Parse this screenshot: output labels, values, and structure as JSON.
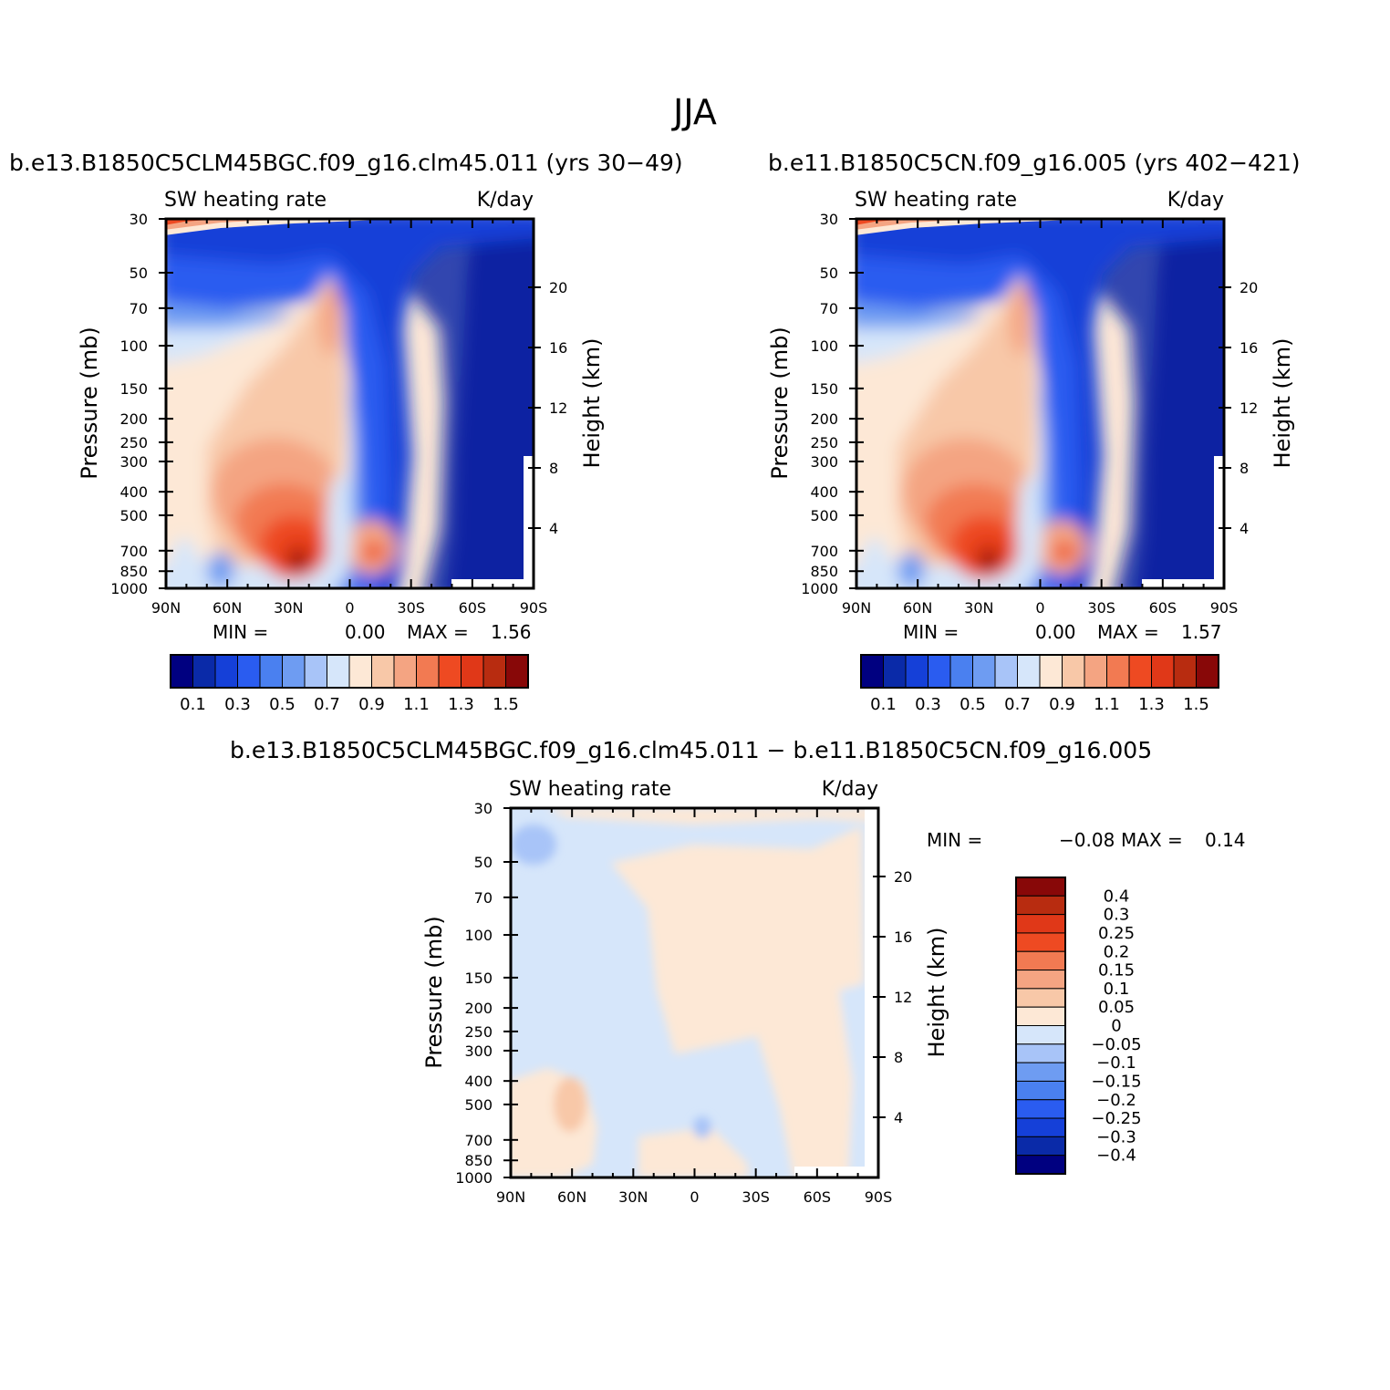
{
  "figure": {
    "season": "JJA",
    "colors": [
      "#000080",
      "#0a2aa8",
      "#1540d8",
      "#2a5cf0",
      "#4a80f0",
      "#6e9cf2",
      "#a8c4f8",
      "#d6e6fa",
      "#fde8d6",
      "#f8c8a8",
      "#f4a482",
      "#f27a52",
      "#ee4a22",
      "#e03818",
      "#b82c10",
      "#880808"
    ]
  },
  "panels": {
    "left": {
      "case_title": "b.e13.B1850C5CLM45BGC.f09_g16.clm45.011 (yrs 30−49)",
      "field": "SW heating rate",
      "units": "K/day",
      "ylabel": "Pressure (mb)",
      "ylabel_right": "Height (km)",
      "min_label": "MIN =",
      "min_value": "0.00",
      "max_label": "MAX =",
      "max_value": "1.56"
    },
    "right": {
      "case_title": "b.e11.B1850C5CN.f09_g16.005 (yrs 402−421)",
      "field": "SW heating rate",
      "units": "K/day",
      "ylabel": "Pressure (mb)",
      "ylabel_right": "Height (km)",
      "min_label": "MIN =",
      "min_value": "0.00",
      "max_label": "MAX =",
      "max_value": "1.57"
    },
    "diff": {
      "case_title": "b.e13.B1850C5CLM45BGC.f09_g16.clm45.011 − b.e11.B1850C5CN.f09_g16.005",
      "field": "SW heating rate",
      "units": "K/day",
      "ylabel": "Pressure (mb)",
      "ylabel_right": "Height (km)",
      "min_label": "MIN =",
      "min_value": "−0.08",
      "max_label": "MAX =",
      "max_value": "0.14"
    }
  },
  "chart_data": [
    {
      "type": "heatmap",
      "title": "b.e13.B1850C5CLM45BGC.f09_g16.clm45.011 (yrs 30−49)",
      "field": "SW heating rate",
      "units": "K/day",
      "xlabel": "",
      "ylabel": "Pressure (mb)",
      "ylabel_right": "Height (km)",
      "x_ticks": [
        "90N",
        "60N",
        "30N",
        "0",
        "30S",
        "60S",
        "90S"
      ],
      "y_ticks": [
        30,
        50,
        70,
        100,
        150,
        200,
        250,
        300,
        400,
        500,
        700,
        850,
        1000
      ],
      "y_ticks_right": [
        20,
        16,
        12,
        8,
        4
      ],
      "y_scale": "log",
      "colorbar_labels": [
        "0.1",
        "0.3",
        "0.5",
        "0.7",
        "0.9",
        "1.1",
        "1.3",
        "1.5"
      ],
      "colorbar_levels": [
        0.1,
        0.2,
        0.3,
        0.4,
        0.5,
        0.6,
        0.7,
        0.8,
        0.9,
        1.0,
        1.1,
        1.2,
        1.3,
        1.4,
        1.5
      ],
      "min": 0.0,
      "max": 1.56
    },
    {
      "type": "heatmap",
      "title": "b.e11.B1850C5CN.f09_g16.005 (yrs 402−421)",
      "field": "SW heating rate",
      "units": "K/day",
      "xlabel": "",
      "ylabel": "Pressure (mb)",
      "ylabel_right": "Height (km)",
      "x_ticks": [
        "90N",
        "60N",
        "30N",
        "0",
        "30S",
        "60S",
        "90S"
      ],
      "y_ticks": [
        30,
        50,
        70,
        100,
        150,
        200,
        250,
        300,
        400,
        500,
        700,
        850,
        1000
      ],
      "y_ticks_right": [
        20,
        16,
        12,
        8,
        4
      ],
      "y_scale": "log",
      "colorbar_labels": [
        "0.1",
        "0.3",
        "0.5",
        "0.7",
        "0.9",
        "1.1",
        "1.3",
        "1.5"
      ],
      "colorbar_levels": [
        0.1,
        0.2,
        0.3,
        0.4,
        0.5,
        0.6,
        0.7,
        0.8,
        0.9,
        1.0,
        1.1,
        1.2,
        1.3,
        1.4,
        1.5
      ],
      "min": 0.0,
      "max": 1.57
    },
    {
      "type": "heatmap",
      "title": "b.e13.B1850C5CLM45BGC.f09_g16.clm45.011 − b.e11.B1850C5CN.f09_g16.005",
      "field": "SW heating rate",
      "units": "K/day",
      "xlabel": "",
      "ylabel": "Pressure (mb)",
      "ylabel_right": "Height (km)",
      "x_ticks": [
        "90N",
        "60N",
        "30N",
        "0",
        "30S",
        "60S",
        "90S"
      ],
      "y_ticks": [
        30,
        50,
        70,
        100,
        150,
        200,
        250,
        300,
        400,
        500,
        700,
        850,
        1000
      ],
      "y_ticks_right": [
        20,
        16,
        12,
        8,
        4
      ],
      "y_scale": "log",
      "colorbar_labels": [
        "0.4",
        "0.3",
        "0.25",
        "0.2",
        "0.15",
        "0.1",
        "0.05",
        "0",
        "−0.05",
        "−0.1",
        "−0.15",
        "−0.2",
        "−0.25",
        "−0.3",
        "−0.4"
      ],
      "min": -0.08,
      "max": 0.14
    }
  ]
}
